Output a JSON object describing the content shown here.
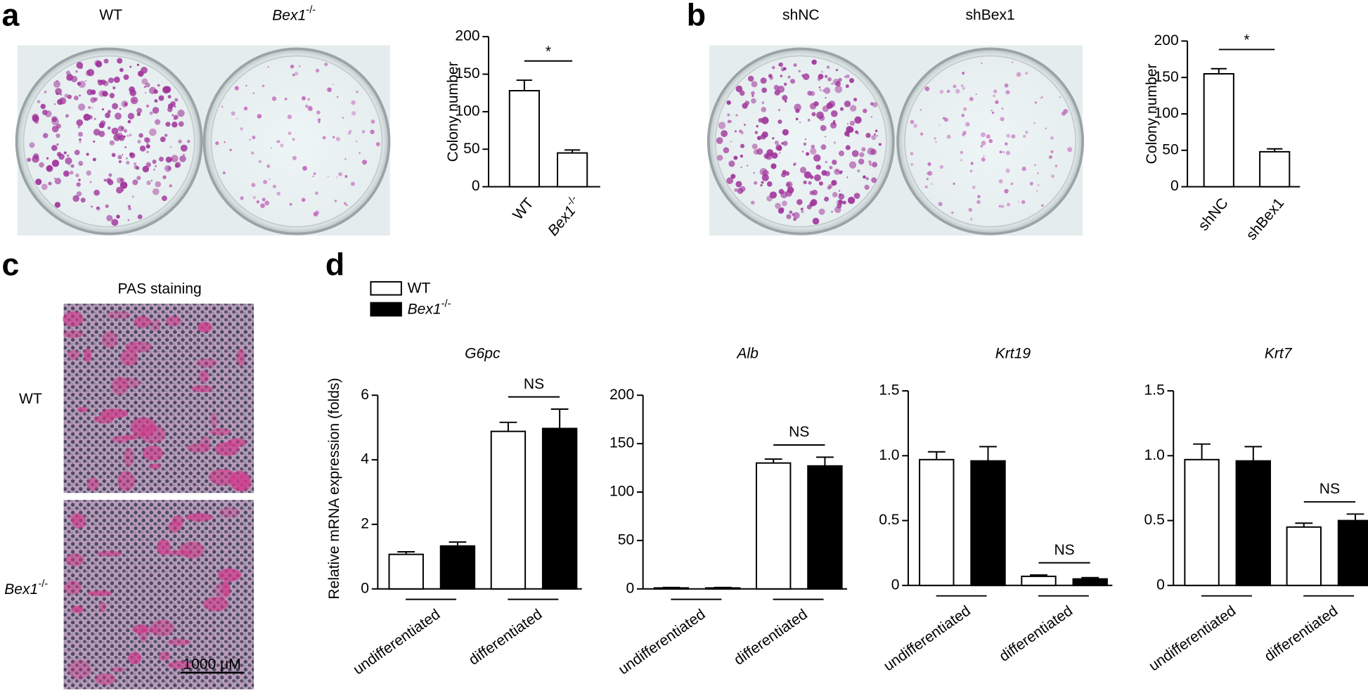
{
  "figure": {
    "panel_labels": [
      "a",
      "b",
      "c",
      "d"
    ],
    "photos": {
      "a": [
        "WT",
        "Bex1-/-"
      ],
      "b": [
        "shNC",
        "shBex1"
      ]
    },
    "pas": {
      "title": "PAS staining",
      "rows": [
        "WT",
        "Bex1-/-"
      ],
      "scale_bar": "1000 μM"
    }
  },
  "chart_data": [
    {
      "type": "bar",
      "ylabel": "Colony number",
      "categories": [
        "WT",
        "Bex1-/-"
      ],
      "values": [
        128,
        45
      ],
      "errors": [
        14,
        4
      ],
      "color": "#ffffff",
      "ylim": [
        0,
        200
      ],
      "yticks": [
        0,
        50,
        100,
        150,
        200
      ],
      "significance": "*"
    },
    {
      "type": "bar",
      "ylabel": "Colony number",
      "categories": [
        "shNC",
        "shBex1"
      ],
      "values": [
        155,
        48
      ],
      "errors": [
        7,
        4
      ],
      "color": "#ffffff",
      "ylim": [
        0,
        200
      ],
      "yticks": [
        0,
        50,
        100,
        150,
        200
      ],
      "significance": "*"
    },
    {
      "type": "grouped_bar_panels",
      "ylabel": "Relative mRNA expression (folds)",
      "categories": [
        "undifferentiated",
        "differentiated"
      ],
      "series": [
        {
          "name": "WT",
          "color": "#ffffff"
        },
        {
          "name": "Bex1-/-",
          "color": "#000000"
        }
      ],
      "panels": [
        {
          "title": "G6pc",
          "ylim": [
            0,
            6
          ],
          "yticks": [
            0,
            2,
            4,
            6
          ],
          "values": [
            [
              1.07,
              4.88
            ],
            [
              1.33,
              4.97
            ]
          ],
          "errors": [
            [
              0.08,
              0.28
            ],
            [
              0.12,
              0.6
            ]
          ],
          "annotation": "NS"
        },
        {
          "title": "Alb",
          "ylim": [
            0,
            200
          ],
          "yticks": [
            0,
            50,
            100,
            150,
            200
          ],
          "values": [
            [
              1,
              130
            ],
            [
              1,
              127
            ]
          ],
          "errors": [
            [
              0.5,
              4
            ],
            [
              0.5,
              9
            ]
          ],
          "annotation": "NS"
        },
        {
          "title": "Krt19",
          "ylim": [
            0,
            1.5
          ],
          "yticks": [
            0,
            0.5,
            {
              "value": 1,
              "label": "1.0"
            },
            1.5
          ],
          "values": [
            [
              0.97,
              0.07
            ],
            [
              0.96,
              0.05
            ]
          ],
          "errors": [
            [
              0.06,
              0.01
            ],
            [
              0.11,
              0.01
            ]
          ],
          "annotation": "NS"
        },
        {
          "title": "Krt7",
          "ylim": [
            0,
            1.5
          ],
          "yticks": [
            0,
            0.5,
            {
              "value": 1,
              "label": "1.0"
            },
            1.5
          ],
          "values": [
            [
              0.97,
              0.45
            ],
            [
              0.96,
              0.5
            ]
          ],
          "errors": [
            [
              0.12,
              0.03
            ],
            [
              0.11,
              0.05
            ]
          ],
          "annotation": "NS"
        }
      ]
    }
  ]
}
